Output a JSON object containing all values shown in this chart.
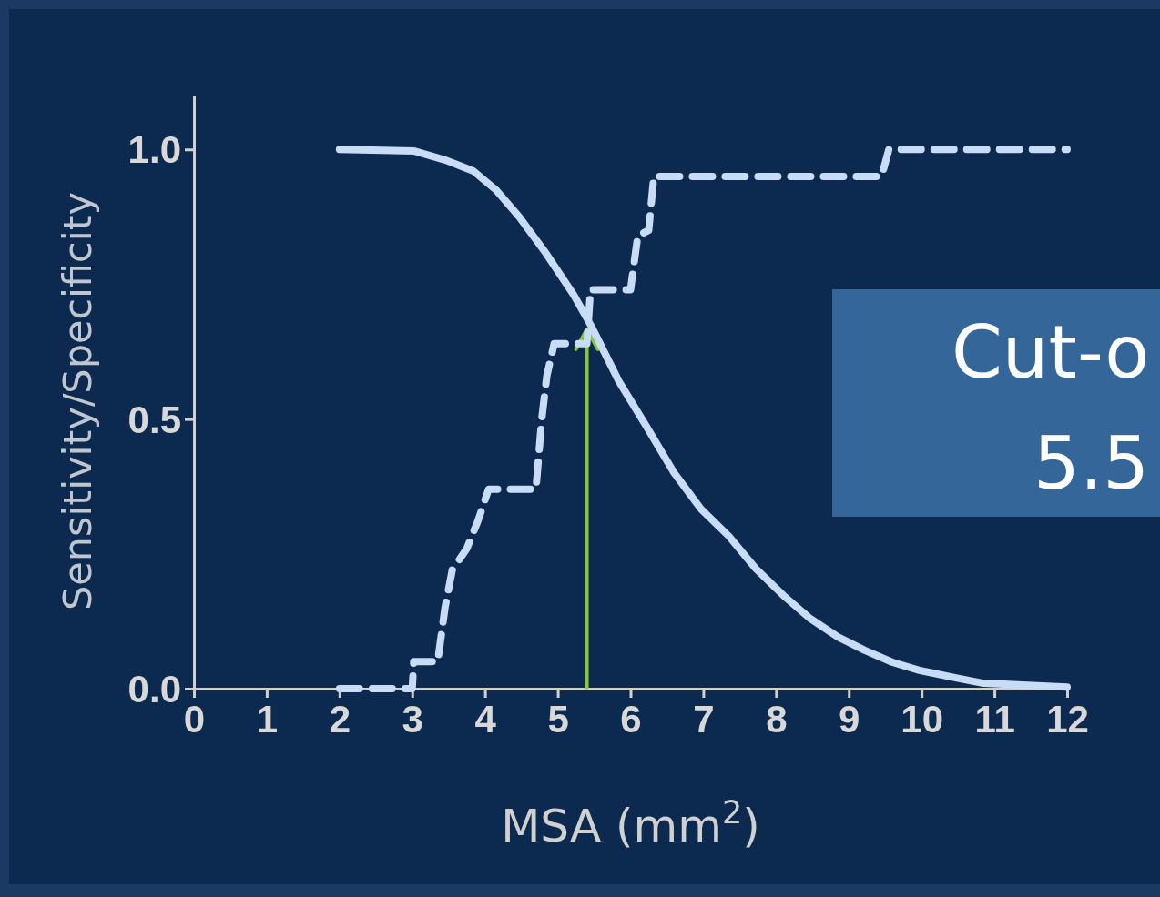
{
  "chart_data": {
    "type": "line",
    "xlabel": "MSA (mm$^{2}$)",
    "ylabel": "Sensitivity/Specificity",
    "xlim": [
      0,
      12
    ],
    "xticks": [
      0,
      1,
      2,
      3,
      4,
      5,
      6,
      7,
      8,
      9,
      10,
      11,
      12
    ],
    "ylim": [
      0,
      1.1
    ],
    "yticks": [
      {
        "value": 0,
        "label": "0.0"
      },
      0.5,
      {
        "value": 1,
        "label": "1.0"
      }
    ],
    "grid": false,
    "ref_lines": [
      {
        "axis": "x",
        "value": 5.4,
        "color": "#8cc63f"
      }
    ],
    "annotations": [
      "Cut-o",
      "5.5"
    ],
    "series": [
      {
        "color": "#c9dcf5",
        "line_style": "solid",
        "x": [
          2,
          3.03,
          3.46,
          3.84,
          4.15,
          4.47,
          4.84,
          5.22,
          5.47,
          5.84,
          6.22,
          6.6,
          6.97,
          7.35,
          7.72,
          8.1,
          8.47,
          8.85,
          9.22,
          9.6,
          9.97,
          10.47,
          10.85,
          12
        ],
        "values": [
          1.0,
          0.997,
          0.98,
          0.96,
          0.925,
          0.875,
          0.807,
          0.73,
          0.67,
          0.57,
          0.486,
          0.4,
          0.333,
          0.283,
          0.223,
          0.173,
          0.13,
          0.096,
          0.071,
          0.049,
          0.034,
          0.02,
          0.01,
          0.003
        ]
      },
      {
        "color": "#c9dcf5",
        "line_style": "dashed",
        "x": [
          2,
          3,
          3.02,
          3.35,
          3.45,
          3.55,
          3.75,
          3.9,
          4.05,
          4.7,
          4.78,
          4.85,
          4.95,
          5.4,
          5.45,
          6.0,
          6.1,
          6.25,
          6.32,
          9.45,
          9.55,
          12
        ],
        "values": [
          0,
          0,
          0.05,
          0.05,
          0.15,
          0.22,
          0.26,
          0.31,
          0.37,
          0.37,
          0.5,
          0.58,
          0.64,
          0.64,
          0.74,
          0.74,
          0.84,
          0.85,
          0.95,
          0.95,
          1.0,
          1.0
        ]
      }
    ]
  }
}
